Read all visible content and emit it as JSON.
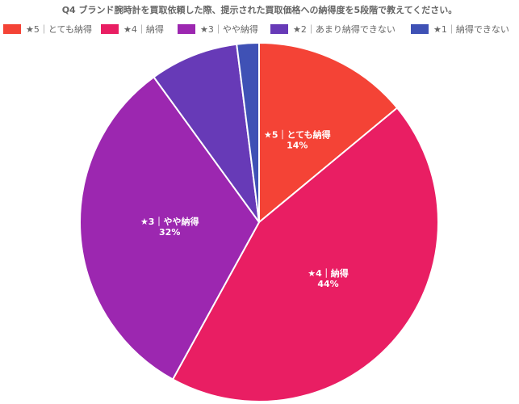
{
  "chart_data": {
    "type": "pie",
    "title": "Q4 ブランド腕時計を買取依頼した際、提示された買取価格への納得度を5段階で教えてください。",
    "legend_position": "top",
    "slices": [
      {
        "name": "★5｜とても納得",
        "value": 14,
        "label": "14%",
        "color": "#F44336"
      },
      {
        "name": "★4｜納得",
        "value": 44,
        "label": "44%",
        "color": "#E91E63"
      },
      {
        "name": "★3｜やや納得",
        "value": 32,
        "label": "32%",
        "color": "#9C27B0"
      },
      {
        "name": "★2｜あまり納得できない",
        "value": 8,
        "label": "",
        "color": "#673AB7"
      },
      {
        "name": "★1｜納得できない",
        "value": 2,
        "label": "",
        "color": "#3F51B5"
      }
    ]
  }
}
